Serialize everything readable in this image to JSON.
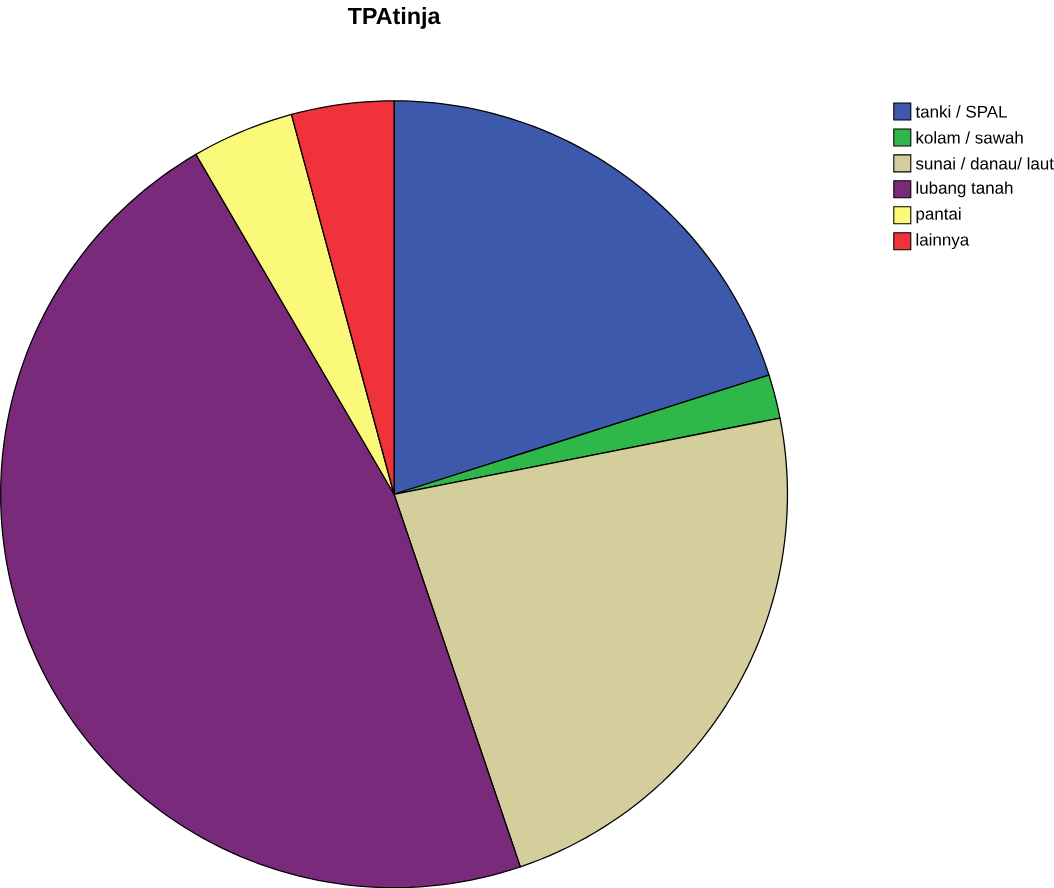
{
  "chart_data": {
    "type": "pie",
    "title": "TPAtinja",
    "categories": [
      "tanki / SPAL",
      "kolam / sawah",
      "sunai / danau/ laut",
      "lubang tanah",
      "pantai",
      "lainnya"
    ],
    "values": [
      20.1,
      1.8,
      22.9,
      46.8,
      4.2,
      4.2
    ],
    "colors": [
      "#3d59ab",
      "#2fb84a",
      "#d3ce9c",
      "#7a2a7a",
      "#fbf97a",
      "#f0323a"
    ],
    "legend": "right"
  }
}
